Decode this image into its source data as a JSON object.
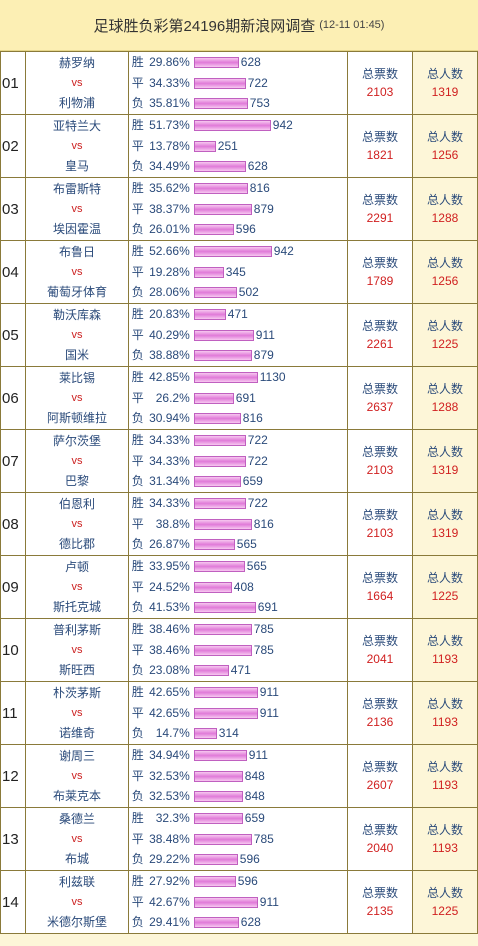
{
  "header": {
    "title": "足球胜负彩第24196期新浪网调查",
    "time": "(12-11 01:45)"
  },
  "labels": {
    "win": "胜",
    "draw": "平",
    "loss": "负",
    "vs": "vs",
    "total_votes": "总票数",
    "total_people": "总人数"
  },
  "rows": [
    {
      "idx": "01",
      "home": "赫罗纳",
      "away": "利物浦",
      "win": {
        "pct": "29.86%",
        "count": "628"
      },
      "draw": {
        "pct": "34.33%",
        "count": "722"
      },
      "loss": {
        "pct": "35.81%",
        "count": "753"
      },
      "votes": "2103",
      "people": "1319"
    },
    {
      "idx": "02",
      "home": "亚特兰大",
      "away": "皇马",
      "win": {
        "pct": "51.73%",
        "count": "942"
      },
      "draw": {
        "pct": "13.78%",
        "count": "251"
      },
      "loss": {
        "pct": "34.49%",
        "count": "628"
      },
      "votes": "1821",
      "people": "1256"
    },
    {
      "idx": "03",
      "home": "布雷斯特",
      "away": "埃因霍温",
      "win": {
        "pct": "35.62%",
        "count": "816"
      },
      "draw": {
        "pct": "38.37%",
        "count": "879"
      },
      "loss": {
        "pct": "26.01%",
        "count": "596"
      },
      "votes": "2291",
      "people": "1288"
    },
    {
      "idx": "04",
      "home": "布鲁日",
      "away": "葡萄牙体育",
      "win": {
        "pct": "52.66%",
        "count": "942"
      },
      "draw": {
        "pct": "19.28%",
        "count": "345"
      },
      "loss": {
        "pct": "28.06%",
        "count": "502"
      },
      "votes": "1789",
      "people": "1256"
    },
    {
      "idx": "05",
      "home": "勒沃库森",
      "away": "国米",
      "win": {
        "pct": "20.83%",
        "count": "471"
      },
      "draw": {
        "pct": "40.29%",
        "count": "911"
      },
      "loss": {
        "pct": "38.88%",
        "count": "879"
      },
      "votes": "2261",
      "people": "1225"
    },
    {
      "idx": "06",
      "home": "莱比锡",
      "away": "阿斯顿维拉",
      "win": {
        "pct": "42.85%",
        "count": "1130"
      },
      "draw": {
        "pct": "26.2%",
        "count": "691"
      },
      "loss": {
        "pct": "30.94%",
        "count": "816"
      },
      "votes": "2637",
      "people": "1288"
    },
    {
      "idx": "07",
      "home": "萨尔茨堡",
      "away": "巴黎",
      "win": {
        "pct": "34.33%",
        "count": "722"
      },
      "draw": {
        "pct": "34.33%",
        "count": "722"
      },
      "loss": {
        "pct": "31.34%",
        "count": "659"
      },
      "votes": "2103",
      "people": "1319"
    },
    {
      "idx": "08",
      "home": "伯恩利",
      "away": "德比郡",
      "win": {
        "pct": "34.33%",
        "count": "722"
      },
      "draw": {
        "pct": "38.8%",
        "count": "816"
      },
      "loss": {
        "pct": "26.87%",
        "count": "565"
      },
      "votes": "2103",
      "people": "1319"
    },
    {
      "idx": "09",
      "home": "卢顿",
      "away": "斯托克城",
      "win": {
        "pct": "33.95%",
        "count": "565"
      },
      "draw": {
        "pct": "24.52%",
        "count": "408"
      },
      "loss": {
        "pct": "41.53%",
        "count": "691"
      },
      "votes": "1664",
      "people": "1225"
    },
    {
      "idx": "10",
      "home": "普利茅斯",
      "away": "斯旺西",
      "win": {
        "pct": "38.46%",
        "count": "785"
      },
      "draw": {
        "pct": "38.46%",
        "count": "785"
      },
      "loss": {
        "pct": "23.08%",
        "count": "471"
      },
      "votes": "2041",
      "people": "1193"
    },
    {
      "idx": "11",
      "home": "朴茨茅斯",
      "away": "诺维奇",
      "win": {
        "pct": "42.65%",
        "count": "911"
      },
      "draw": {
        "pct": "42.65%",
        "count": "911"
      },
      "loss": {
        "pct": "14.7%",
        "count": "314"
      },
      "votes": "2136",
      "people": "1193"
    },
    {
      "idx": "12",
      "home": "谢周三",
      "away": "布莱克本",
      "win": {
        "pct": "34.94%",
        "count": "911"
      },
      "draw": {
        "pct": "32.53%",
        "count": "848"
      },
      "loss": {
        "pct": "32.53%",
        "count": "848"
      },
      "votes": "2607",
      "people": "1193"
    },
    {
      "idx": "13",
      "home": "桑德兰",
      "away": "布城",
      "win": {
        "pct": "32.3%",
        "count": "659"
      },
      "draw": {
        "pct": "38.48%",
        "count": "785"
      },
      "loss": {
        "pct": "29.22%",
        "count": "596"
      },
      "votes": "2040",
      "people": "1193"
    },
    {
      "idx": "14",
      "home": "利兹联",
      "away": "米德尔斯堡",
      "win": {
        "pct": "27.92%",
        "count": "596"
      },
      "draw": {
        "pct": "42.67%",
        "count": "911"
      },
      "loss": {
        "pct": "29.41%",
        "count": "628"
      },
      "votes": "2135",
      "people": "1225"
    }
  ]
}
